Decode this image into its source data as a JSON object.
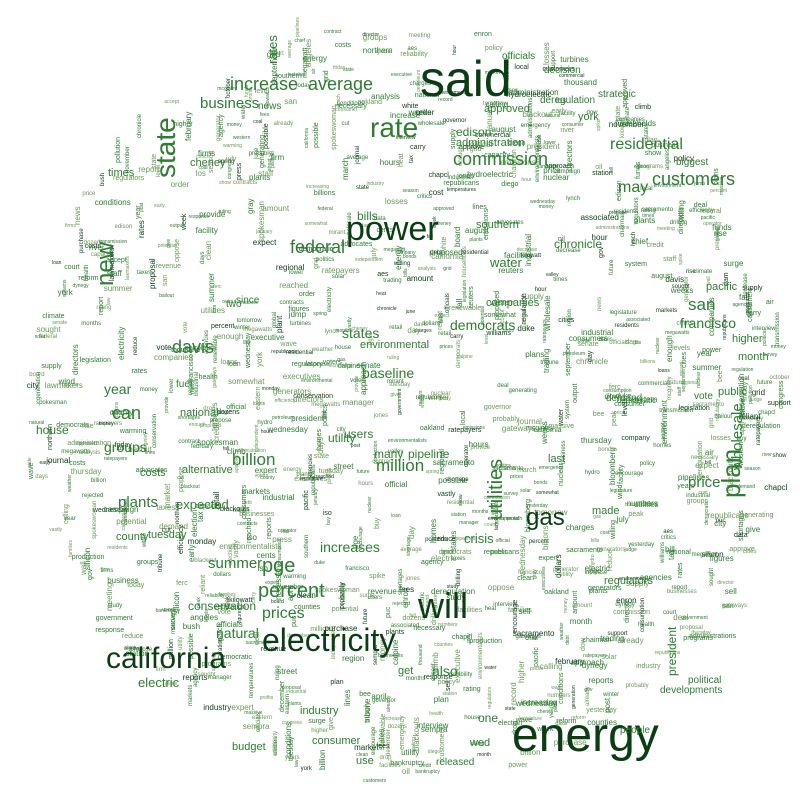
{
  "word_cloud": {
    "colors": {
      "dark": "#0b3d14",
      "mid": "#2e7d32",
      "light": "#6a9a5a"
    },
    "major": {
      "said": "said",
      "energy": "energy",
      "will": "will",
      "power": "power",
      "electricity": "electricity",
      "california": "california",
      "rate": "rate",
      "state": "state",
      "gas": "gas",
      "plan": "plan",
      "customers": "customers",
      "percent": "percent",
      "utilities": "utilities",
      "residential": "residential",
      "commission": "commission",
      "new": "new",
      "increase": "increase",
      "average": "average",
      "business": "business",
      "prices": "prices",
      "pge": "pge",
      "davis": "davis",
      "federal": "federal",
      "can": "can",
      "billion": "billion",
      "price": "price",
      "may": "may",
      "san": "san",
      "francisco": "francisco",
      "million": "million",
      "summer": "summer",
      "natural": "natural",
      "conservation": "conservation",
      "electric": "electric",
      "wholesale": "wholesale",
      "plants": "plants",
      "president": "president",
      "increases": "increases",
      "democrats": "democrats",
      "states": "states",
      "baseline": "baseline",
      "also": "also",
      "crisis": "crisis",
      "water": "water",
      "bills": "bills",
      "edison": "edison",
      "year": "year",
      "groups": "groups",
      "expected": "expected",
      "budget": "budget",
      "rates": "rates",
      "cheney": "cheney",
      "times": "times",
      "alternative": "alternative",
      "public": "public",
      "tuesday": "tuesday",
      "county": "county",
      "house": "house",
      "national": "national",
      "utility": "utility",
      "pipeline": "pipeline",
      "many": "many",
      "users": "users",
      "chronicle": "chronicle",
      "administration": "administration",
      "approved": "approved",
      "industry": "industry",
      "consumer": "consumer",
      "companies": "companies",
      "environmental": "environmental",
      "southern": "southern",
      "york": "york",
      "higher": "higher",
      "month": "month",
      "pacific": "pacific",
      "use": "use",
      "wed": "wed",
      "released": "released",
      "one": "one",
      "get": "get",
      "people": "people",
      "political": "political",
      "developments": "developments",
      "strategic": "strategic",
      "biggest": "biggest",
      "regulators": "regulators",
      "demand": "demand",
      "vote": "vote",
      "officials": "officials",
      "deregulation": "deregulation",
      "decision": "decision",
      "news": "news",
      "fuel": "fuel",
      "two": "two",
      "since": "since",
      "power2": "power",
      "last": "last",
      "made": "made",
      "costs": "costs"
    },
    "filler": [
      "billions",
      "directors",
      "give",
      "health",
      "possible",
      "vastly",
      "somewhat",
      "expect",
      "expert",
      "administrations",
      "petroleum",
      "provide",
      "officials",
      "environmentalists",
      "willing",
      "increasing",
      "show",
      "chapcl",
      "nuclear",
      "gateways",
      "wednesday",
      "massive",
      "industrial",
      "ratepayers",
      "money",
      "legislature",
      "approach",
      "plants",
      "carry",
      "conditions",
      "potential",
      "necessary",
      "lynch",
      "staff",
      "interview",
      "policy",
      "hour",
      "amount",
      "calling",
      "wave",
      "republicans",
      "megawatts",
      "democratic",
      "clean",
      "gov",
      "propose",
      "probably",
      "accept",
      "california",
      "agencies",
      "dozens",
      "station",
      "reduce",
      "future",
      "state",
      "already",
      "deal",
      "early",
      "reached",
      "meeting",
      "sought",
      "encourage",
      "response",
      "enough",
      "rating",
      "mcginley",
      "sacramento",
      "programs",
      "grid",
      "peak",
      "cents",
      "kilowatt",
      "hours",
      "solar",
      "wind",
      "generators",
      "supply",
      "credit",
      "market",
      "markets",
      "trading",
      "contracts",
      "contract",
      "buy",
      "sell",
      "purchase",
      "tax",
      "taxes",
      "cut",
      "congress",
      "senate",
      "legislation",
      "bill",
      "law",
      "lawmakers",
      "judge",
      "court",
      "ruling",
      "order",
      "agency",
      "board",
      "regulatory",
      "regulation",
      "reform",
      "reliability",
      "blackouts",
      "blackout",
      "shortage",
      "shortages",
      "emergency",
      "conservation",
      "efficiency",
      "renewable",
      "coal",
      "oil",
      "drilling",
      "pipelines",
      "transmission",
      "lines",
      "grid",
      "capacity",
      "megawatt",
      "output",
      "production",
      "consumption",
      "consumers",
      "residents",
      "homes",
      "households",
      "families",
      "business",
      "businesses",
      "companies",
      "company",
      "firm",
      "firms",
      "industry",
      "executive",
      "executives",
      "chairman",
      "chief",
      "director",
      "manager",
      "spokesman",
      "spokeswoman",
      "official",
      "report",
      "reports",
      "study",
      "analysis",
      "survey",
      "data",
      "figures",
      "numbers",
      "percent",
      "average",
      "higher",
      "lower",
      "increase",
      "decrease",
      "rise",
      "fall",
      "jump",
      "drop",
      "surge",
      "climb",
      "spike",
      "record",
      "level",
      "levels",
      "cost",
      "costs",
      "price",
      "prices",
      "bills",
      "charges",
      "fees",
      "rates",
      "revenue",
      "profits",
      "losses",
      "debt",
      "bankruptcy",
      "bailout",
      "loan",
      "loans",
      "bonds",
      "funds",
      "money",
      "dollars",
      "billion",
      "million",
      "thousand",
      "year",
      "years",
      "month",
      "months",
      "week",
      "weeks",
      "day",
      "days",
      "today",
      "yesterday",
      "tomorrow",
      "monday",
      "tuesday",
      "wednesday",
      "thursday",
      "friday",
      "january",
      "february",
      "march",
      "april",
      "june",
      "july",
      "august",
      "september",
      "october",
      "november",
      "december",
      "summer",
      "winter",
      "spring",
      "fall",
      "season",
      "heat",
      "weather",
      "temperatures",
      "air",
      "environment",
      "environmental",
      "pollution",
      "emissions",
      "global",
      "climate",
      "warming",
      "water",
      "river",
      "dam",
      "hydro",
      "hydroelectric",
      "nuclear",
      "plant",
      "plants",
      "facility",
      "facilities",
      "generation",
      "generating",
      "generator",
      "turbines",
      "natural",
      "gas",
      "electricity",
      "electric",
      "power",
      "energy",
      "utility",
      "utilities",
      "edison",
      "pge",
      "sempra",
      "enron",
      "dynegy",
      "reliant",
      "williams",
      "duke",
      "mirant",
      "calpine",
      "aes",
      "pacific",
      "southern",
      "northern",
      "western",
      "eastern",
      "region",
      "regional",
      "local",
      "city",
      "cities",
      "county",
      "counties",
      "state",
      "states",
      "federal",
      "national",
      "government",
      "bush",
      "cheney",
      "davis",
      "gray",
      "governor",
      "president",
      "white",
      "house",
      "administration",
      "democrats",
      "republicans",
      "political",
      "politics",
      "vote",
      "voters",
      "election",
      "campaign",
      "plan",
      "plans",
      "proposal",
      "proposed",
      "approved",
      "approve",
      "rejected",
      "support",
      "oppose",
      "critics",
      "advocates",
      "groups",
      "consumer",
      "ratepayers",
      "customers",
      "residential",
      "commercial",
      "industrial",
      "users",
      "demand",
      "supply",
      "wholesale",
      "retail",
      "deregulation",
      "regulators",
      "commission",
      "puc",
      "ferc",
      "iso",
      "grid",
      "operator",
      "independent",
      "system",
      "chronicle",
      "francisco",
      "san",
      "diego",
      "los",
      "angeles",
      "york",
      "times",
      "news",
      "associated",
      "press",
      "reuters",
      "bloomberg",
      "dow",
      "jones",
      "wall",
      "street",
      "journal",
      "post",
      "tribune",
      "bee",
      "sacramento",
      "oakland",
      "silicon",
      "valley"
    ]
  }
}
